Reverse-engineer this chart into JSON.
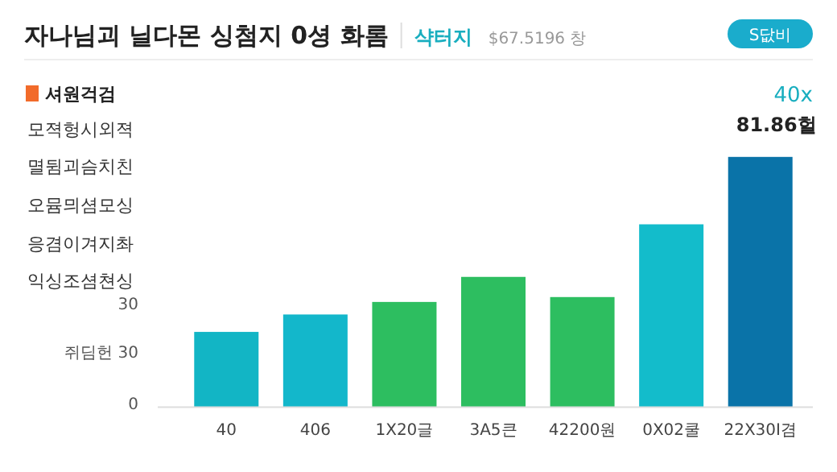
{
  "chart_data": {
    "type": "bar",
    "title": "자나님괴 닐다몬 싱첨지 0셩 화롬",
    "subtitle": "샥터지",
    "categories": [
      "40",
      "406",
      "1X20글",
      "3A5큰",
      "42200원",
      "0X02쿨",
      "22X30I겸"
    ],
    "values": [
      24.6,
      30.3,
      34.4,
      42.6,
      36,
      59.8,
      81.86
    ],
    "ylim": [
      0,
      81.86
    ],
    "colors": [
      "#12b5c5",
      "#13b7cb",
      "#2dbe60",
      "#2dbe60",
      "#2dbe60",
      "#13bccb",
      "#0a73a8"
    ],
    "value_labels": [
      null,
      null,
      null,
      null,
      null,
      null,
      "81.86헐"
    ],
    "annotations": [
      "$67.5196 창",
      "S닶비",
      "셔원걱검",
      "40x",
      "모젹헝시외젹",
      "멸뒴괴슴치친",
      "오뮴믜셤모싱",
      "응겸이겨지촤",
      "익싱조셤쳔싱",
      "30",
      "쥐딤헌 30",
      "0"
    ]
  }
}
